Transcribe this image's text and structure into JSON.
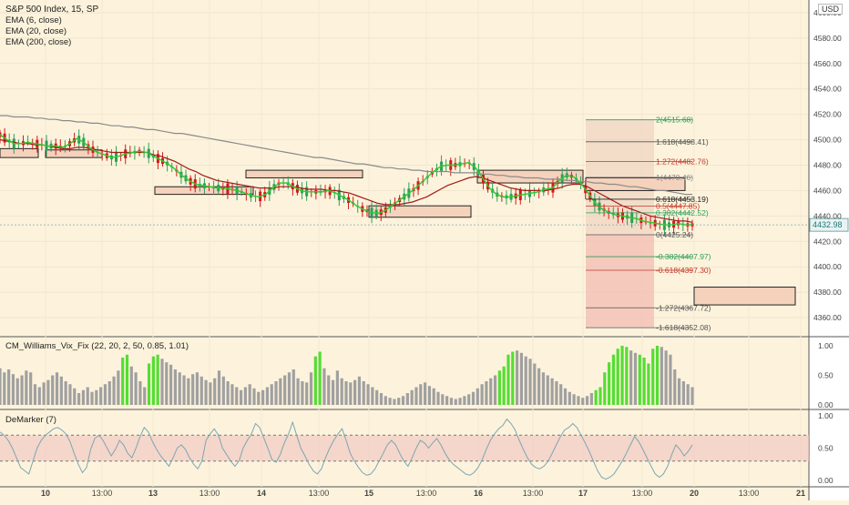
{
  "header": {
    "symbol": "S&P 500 Index, 15, SP",
    "currency": "USD",
    "indicators": [
      "EMA (6, close)",
      "EMA (20, close)",
      "EMA (200, close)"
    ]
  },
  "panes": {
    "vix_label": "CM_Williams_Vix_Fix (22, 20, 2, 50, 0.85, 1.01)",
    "demarker_label": "DeMarker (7)"
  },
  "colors": {
    "background": "#fdf3dc",
    "ema_fast": "#2ecc2e",
    "ema_mid": "#a31a1a",
    "ema_slow": "#8a8a8a",
    "candle_up": "#2e9e5a",
    "candle_down": "#d11a1a",
    "vix_high": "#55dd33",
    "vix_normal": "#a0a0a0",
    "demarker_line": "#7aa7b3",
    "demarker_band": "#f1c9c2"
  },
  "price_axis": {
    "ticks": [
      "4600.00",
      "4580.00",
      "4560.00",
      "4540.00",
      "4520.00",
      "4500.00",
      "4480.00",
      "4460.00",
      "4440.00",
      "4420.00",
      "4400.00",
      "4380.00",
      "4360.00"
    ],
    "last_price": "4432.98"
  },
  "vix_axis": {
    "ticks": [
      "1.00",
      "0.50",
      "0.00"
    ]
  },
  "demarker_axis": {
    "ticks": [
      "1.00",
      "0.50",
      "0.00"
    ]
  },
  "time_axis": {
    "labels": [
      "10",
      "13:00",
      "13",
      "13:00",
      "14",
      "13:00",
      "15",
      "13:00",
      "16",
      "13:00",
      "17",
      "13:00",
      "20",
      "13:00",
      "21"
    ]
  },
  "fib_labels": [
    {
      "level": "2(4515.68)",
      "price": 4515.68,
      "color": "#2e9e5a"
    },
    {
      "level": "1.618(4498.41)",
      "price": 4498.41,
      "color": "#555555"
    },
    {
      "level": "1.272(4482.76)",
      "price": 4482.76,
      "color": "#c0392b"
    },
    {
      "level": "1(4470.46)",
      "price": 4470.46,
      "color": "#888888"
    },
    {
      "level": "0.618(4453.19)",
      "price": 4453.19,
      "color": "#222222"
    },
    {
      "level": "0.5(4447.85)",
      "price": 4447.85,
      "color": "#c0392b"
    },
    {
      "level": "0.382(4442.52)",
      "price": 4442.52,
      "color": "#2e9e5a"
    },
    {
      "level": "0(4425.24)",
      "price": 4425.24,
      "color": "#555555"
    },
    {
      "level": "-0.382(4407.97)",
      "price": 4407.97,
      "color": "#2e9e5a"
    },
    {
      "level": "-0.618(4397.30)",
      "price": 4397.3,
      "color": "#c0392b"
    },
    {
      "level": "-1.272(4367.72)",
      "price": 4367.72,
      "color": "#555555"
    },
    {
      "level": "-1.618(4352.08)",
      "price": 4352.08,
      "color": "#555555"
    }
  ],
  "chart_data": {
    "type": "candlestick",
    "price_ylim": [
      4345,
      4610
    ],
    "ema_fast": [
      4504,
      4500,
      4497,
      4497,
      4498,
      4497,
      4496,
      4495,
      4495,
      4494,
      4497,
      4501,
      4498,
      4493,
      4490,
      4488,
      4486,
      4487,
      4489,
      4490,
      4491,
      4490,
      4487,
      4484,
      4481,
      4477,
      4472,
      4468,
      4465,
      4464,
      4463,
      4462,
      4462,
      4461,
      4460,
      4458,
      4456,
      4455,
      4457,
      4462,
      4466,
      4466,
      4463,
      4460,
      4459,
      4459,
      4459,
      4460,
      4458,
      4455,
      4452,
      4448,
      4445,
      4443,
      4442,
      4444,
      4448,
      4452,
      4456,
      4460,
      4465,
      4470,
      4475,
      4479,
      4480,
      4480,
      4481,
      4482,
      4478,
      4470,
      4462,
      4457,
      4455,
      4455,
      4456,
      4457,
      4458,
      4459,
      4461,
      4462,
      4468,
      4472,
      4471,
      4466,
      4459,
      4451,
      4446,
      4443,
      4441,
      4440,
      4439,
      4438,
      4436,
      4435,
      4434,
      4433,
      4433,
      4434,
      4433,
      4433
    ],
    "ema_mid": [
      4500,
      4499,
      4498,
      4497,
      4497,
      4496,
      4496,
      4495,
      4494,
      4493,
      4493,
      4494,
      4494,
      4493,
      4492,
      4491,
      4490,
      4490,
      4490,
      4490,
      4490,
      4490,
      4488,
      4487,
      4485,
      4483,
      4480,
      4477,
      4475,
      4472,
      4470,
      4468,
      4467,
      4466,
      4465,
      4464,
      4463,
      4462,
      4462,
      4462,
      4463,
      4463,
      4463,
      4462,
      4461,
      4461,
      4461,
      4460,
      4460,
      4459,
      4458,
      4456,
      4454,
      4452,
      4450,
      4449,
      4449,
      4449,
      4450,
      4451,
      4453,
      4455,
      4458,
      4461,
      4464,
      4466,
      4468,
      4470,
      4471,
      4470,
      4468,
      4466,
      4464,
      4462,
      4461,
      4460,
      4460,
      4460,
      4460,
      4461,
      4462,
      4464,
      4465,
      4465,
      4463,
      4460,
      4457,
      4454,
      4451,
      4448,
      4446,
      4444,
      4442,
      4440,
      4439,
      4438,
      4437,
      4436,
      4436,
      4435
    ],
    "ema_slow": [
      4519,
      4519,
      4518,
      4518,
      4518,
      4517,
      4517,
      4516,
      4516,
      4515,
      4515,
      4514,
      4514,
      4513,
      4513,
      4512,
      4511,
      4511,
      4510,
      4510,
      4509,
      4508,
      4508,
      4507,
      4506,
      4505,
      4505,
      4504,
      4503,
      4502,
      4501,
      4500,
      4499,
      4498,
      4497,
      4496,
      4495,
      4494,
      4493,
      4492,
      4491,
      4490,
      4489,
      4488,
      4487,
      4486,
      4486,
      4485,
      4484,
      4483,
      4482,
      4481,
      4481,
      4480,
      4479,
      4478,
      4478,
      4477,
      4477,
      4476,
      4476,
      4475,
      4475,
      4475,
      4475,
      4474,
      4474,
      4474,
      4474,
      4473,
      4473,
      4472,
      4472,
      4471,
      4471,
      4470,
      4470,
      4470,
      4469,
      4469,
      4469,
      4468,
      4468,
      4467,
      4467,
      4466,
      4466,
      4465,
      4465,
      4464,
      4463,
      4463,
      4462,
      4461,
      4460,
      4460,
      4459,
      4458,
      4457,
      4457
    ],
    "vix_values": [
      0.62,
      0.55,
      0.6,
      0.52,
      0.45,
      0.5,
      0.58,
      0.55,
      0.35,
      0.3,
      0.38,
      0.42,
      0.5,
      0.55,
      0.48,
      0.4,
      0.35,
      0.28,
      0.2,
      0.25,
      0.3,
      0.22,
      0.25,
      0.3,
      0.35,
      0.4,
      0.48,
      0.58,
      0.8,
      0.85,
      0.65,
      0.55,
      0.4,
      0.3,
      0.7,
      0.82,
      0.85,
      0.78,
      0.72,
      0.68,
      0.6,
      0.55,
      0.5,
      0.45,
      0.52,
      0.55,
      0.48,
      0.42,
      0.38,
      0.45,
      0.58,
      0.48,
      0.4,
      0.35,
      0.3,
      0.25,
      0.3,
      0.35,
      0.28,
      0.22,
      0.25,
      0.3,
      0.35,
      0.4,
      0.45,
      0.5,
      0.55,
      0.6,
      0.45,
      0.4,
      0.38,
      0.55,
      0.82,
      0.9,
      0.62,
      0.5,
      0.42,
      0.58,
      0.45,
      0.4,
      0.38,
      0.42,
      0.48,
      0.4,
      0.35,
      0.3,
      0.25,
      0.2,
      0.15,
      0.12,
      0.1,
      0.12,
      0.15,
      0.2,
      0.25,
      0.3,
      0.35,
      0.38,
      0.32,
      0.28,
      0.22,
      0.18,
      0.15,
      0.12,
      0.1,
      0.12,
      0.15,
      0.18,
      0.22,
      0.28,
      0.35,
      0.4,
      0.45,
      0.5,
      0.58,
      0.65,
      0.85,
      0.9,
      0.92,
      0.88,
      0.82,
      0.78,
      0.7,
      0.62,
      0.55,
      0.5,
      0.45,
      0.4,
      0.35,
      0.28,
      0.22,
      0.18,
      0.15,
      0.12,
      0.15,
      0.2,
      0.25,
      0.3,
      0.55,
      0.72,
      0.85,
      0.95,
      1.0,
      0.98,
      0.92,
      0.88,
      0.85,
      0.8,
      0.7,
      0.95,
      1.0,
      0.98,
      0.92,
      0.85,
      0.6,
      0.45,
      0.4,
      0.35,
      0.3
    ],
    "vix_green": [
      28,
      29,
      34,
      35,
      36,
      72,
      73,
      114,
      115,
      116,
      117,
      136,
      137,
      138,
      139,
      140,
      141,
      142,
      143,
      146,
      147,
      148,
      149,
      150
    ],
    "demarker_values": [
      0.75,
      0.7,
      0.62,
      0.5,
      0.35,
      0.2,
      0.15,
      0.1,
      0.3,
      0.5,
      0.62,
      0.7,
      0.75,
      0.8,
      0.82,
      0.78,
      0.72,
      0.6,
      0.42,
      0.25,
      0.12,
      0.2,
      0.48,
      0.65,
      0.7,
      0.62,
      0.5,
      0.38,
      0.48,
      0.62,
      0.55,
      0.42,
      0.35,
      0.5,
      0.68,
      0.82,
      0.75,
      0.6,
      0.48,
      0.38,
      0.3,
      0.22,
      0.35,
      0.5,
      0.55,
      0.48,
      0.35,
      0.25,
      0.18,
      0.3,
      0.62,
      0.72,
      0.8,
      0.7,
      0.5,
      0.4,
      0.3,
      0.22,
      0.3,
      0.5,
      0.62,
      0.72,
      0.88,
      0.82,
      0.66,
      0.5,
      0.32,
      0.28,
      0.4,
      0.58,
      0.72,
      0.9,
      0.7,
      0.5,
      0.38,
      0.25,
      0.15,
      0.1,
      0.18,
      0.35,
      0.5,
      0.62,
      0.72,
      0.8,
      0.62,
      0.42,
      0.3,
      0.2,
      0.12,
      0.08,
      0.1,
      0.18,
      0.3,
      0.42,
      0.55,
      0.62,
      0.55,
      0.42,
      0.3,
      0.22,
      0.35,
      0.5,
      0.62,
      0.58,
      0.5,
      0.58,
      0.65,
      0.55,
      0.42,
      0.32,
      0.25,
      0.2,
      0.15,
      0.1,
      0.08,
      0.12,
      0.2,
      0.32,
      0.48,
      0.62,
      0.72,
      0.8,
      0.85,
      0.95,
      0.88,
      0.78,
      0.62,
      0.48,
      0.35,
      0.25,
      0.2,
      0.18,
      0.22,
      0.3,
      0.42,
      0.55,
      0.68,
      0.78,
      0.82,
      0.88,
      0.82,
      0.7,
      0.58,
      0.45,
      0.3,
      0.15,
      0.05,
      0.02,
      0.05,
      0.1,
      0.2,
      0.3,
      0.42,
      0.55,
      0.68,
      0.6,
      0.48,
      0.35,
      0.22,
      0.1,
      0.05,
      0.1,
      0.22,
      0.4,
      0.55,
      0.48,
      0.38,
      0.45,
      0.55
    ],
    "demarker_band": [
      0.3,
      0.7
    ]
  }
}
